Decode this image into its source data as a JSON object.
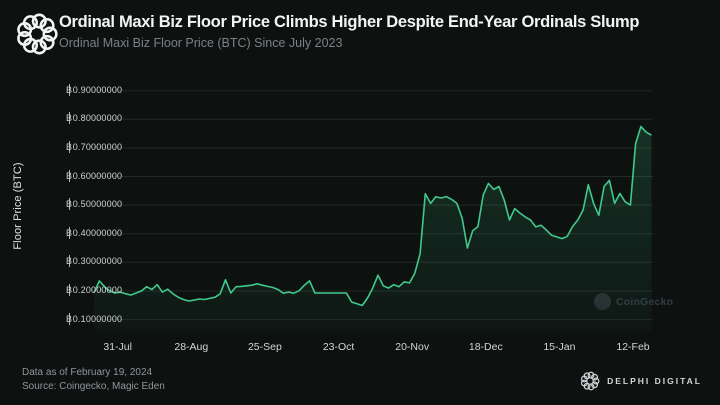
{
  "header": {
    "title": "Ordinal Maxi Biz Floor Price Climbs Higher Despite End-Year Ordinals Slump",
    "subtitle": "Ordinal Maxi Biz Floor Price (BTC) Since July 2023"
  },
  "chart_data": {
    "type": "area",
    "title": "Ordinal Maxi Biz Floor Price (BTC) Since July 2023",
    "xlabel": "",
    "ylabel": "Floor Price (BTC)",
    "series_name": "Ordinal Maxi Biz floor price (BTC)",
    "start_date": "2023-07-22",
    "end_date": "2024-02-19",
    "sample_interval_days": 2,
    "xlim_days": [
      -0.4,
      212.6
    ],
    "ylim": [
      0.06,
      0.92
    ],
    "grid": "horizontal-only",
    "legend": "none",
    "watermark": "CoinGecko",
    "y_ticks": [
      {
        "label": "₿0.10000000",
        "value": 0.1
      },
      {
        "label": "₿0.20000000",
        "value": 0.2
      },
      {
        "label": "₿0.30000000",
        "value": 0.3
      },
      {
        "label": "₿0.40000000",
        "value": 0.4
      },
      {
        "label": "₿0.50000000",
        "value": 0.5
      },
      {
        "label": "₿0.60000000",
        "value": 0.6
      },
      {
        "label": "₿0.70000000",
        "value": 0.7
      },
      {
        "label": "₿0.80000000",
        "value": 0.8
      },
      {
        "label": "₿0.90000000",
        "value": 0.9
      }
    ],
    "x_ticks": [
      {
        "label": "31-Jul",
        "day": 9
      },
      {
        "label": "28-Aug",
        "day": 37
      },
      {
        "label": "25-Sep",
        "day": 65
      },
      {
        "label": "23-Oct",
        "day": 93
      },
      {
        "label": "20-Nov",
        "day": 121
      },
      {
        "label": "18-Dec",
        "day": 149
      },
      {
        "label": "15-Jan",
        "day": 177
      },
      {
        "label": "12-Feb",
        "day": 205
      }
    ],
    "values": [
      0.195,
      0.235,
      0.215,
      0.2,
      0.193,
      0.196,
      0.19,
      0.186,
      0.193,
      0.2,
      0.215,
      0.205,
      0.222,
      0.196,
      0.206,
      0.19,
      0.178,
      0.17,
      0.165,
      0.168,
      0.172,
      0.17,
      0.174,
      0.178,
      0.19,
      0.239,
      0.193,
      0.215,
      0.216,
      0.218,
      0.22,
      0.225,
      0.22,
      0.216,
      0.212,
      0.205,
      0.192,
      0.196,
      0.192,
      0.201,
      0.22,
      0.235,
      0.193,
      0.193,
      0.193,
      0.193,
      0.193,
      0.193,
      0.193,
      0.161,
      0.155,
      0.149,
      0.175,
      0.21,
      0.255,
      0.218,
      0.21,
      0.222,
      0.215,
      0.232,
      0.228,
      0.262,
      0.33,
      0.54,
      0.506,
      0.529,
      0.525,
      0.53,
      0.52,
      0.506,
      0.455,
      0.35,
      0.41,
      0.425,
      0.535,
      0.576,
      0.555,
      0.565,
      0.518,
      0.448,
      0.488,
      0.472,
      0.459,
      0.448,
      0.424,
      0.43,
      0.413,
      0.395,
      0.389,
      0.383,
      0.391,
      0.425,
      0.448,
      0.483,
      0.571,
      0.506,
      0.465,
      0.565,
      0.587,
      0.506,
      0.541,
      0.512,
      0.5,
      0.715,
      0.775,
      0.755,
      0.745
    ]
  },
  "footer": {
    "line1": "Data as of February 19, 2024",
    "line2": "Source: Coingecko, Magic Eden",
    "brand": "DELPHI DIGITAL"
  },
  "icons": {
    "header_logo": "delphi-rings-logo",
    "footer_logo": "delphi-rings-logo",
    "watermark_icon": "coingecko-circle-logo"
  },
  "colors": {
    "background": "#0d1110",
    "line": "#40c98b",
    "area_fill_top": "#40c98b2e",
    "area_fill_bottom": "#40c98b08",
    "grid": "#232927",
    "title": "#f2f5f4",
    "subtitle": "#7a8287",
    "tick_text": "#ced3d5",
    "footer_text": "#8f979c",
    "brand_text": "#d2d7da",
    "watermark_text": "#39434a"
  }
}
